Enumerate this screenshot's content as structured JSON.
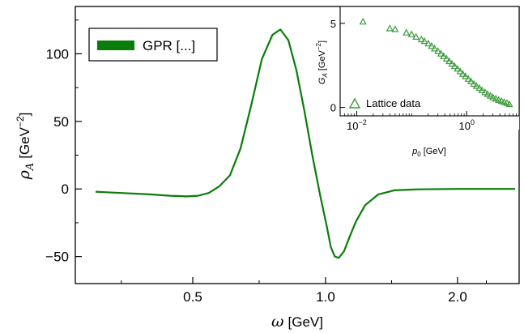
{
  "colors": {
    "series": "#0a7d0a",
    "axis": "#000000",
    "marker": "#3c9a3c"
  },
  "chart_data": [
    {
      "type": "line",
      "xlabel_symbol": "ω",
      "xlabel_unit": "[GeV]",
      "ylabel_symbol": "ρ",
      "ylabel_sub": "A",
      "ylabel_unit": "[GeV",
      "ylabel_exp": "−2",
      "ylabel_close": "]",
      "ylim": [
        -70,
        135
      ],
      "xticks": [
        {
          "value": 0.5,
          "label": "0.5"
        },
        {
          "value": 1.0,
          "label": "1.0"
        },
        {
          "value": 2.0,
          "label": "2.0"
        }
      ],
      "yticks": [
        {
          "value": 100,
          "label": "100"
        },
        {
          "value": 50,
          "label": "50"
        },
        {
          "value": 0,
          "label": "0"
        },
        {
          "value": -50,
          "label": "−50"
        }
      ],
      "legend": {
        "label": "GPR [...]",
        "position": "top-left"
      },
      "series": [
        {
          "name": "GPR [...]",
          "x": [
            0.16,
            0.25,
            0.35,
            0.42,
            0.48,
            0.52,
            0.56,
            0.6,
            0.64,
            0.68,
            0.72,
            0.76,
            0.8,
            0.83,
            0.86,
            0.89,
            0.92,
            0.95,
            0.98,
            1.01,
            1.04,
            1.07,
            1.1,
            1.14,
            1.18,
            1.23,
            1.3,
            1.4,
            1.52,
            1.7,
            2.0,
            2.5,
            3.0
          ],
          "y": [
            -2,
            -3,
            -4,
            -5,
            -5.5,
            -5,
            -3,
            2,
            10,
            30,
            62,
            96,
            114,
            118,
            110,
            88,
            58,
            25,
            -5,
            -28,
            -43,
            -50,
            -51,
            -46,
            -36,
            -24,
            -12,
            -4,
            -1,
            -0.3,
            0,
            0,
            0
          ]
        }
      ]
    },
    {
      "type": "scatter",
      "xlabel_symbol": "p",
      "xlabel_sub": "0",
      "xlabel_unit": "[GeV]",
      "ylabel_symbol": "G",
      "ylabel_sub": "A",
      "ylabel_unit": "[GeV",
      "ylabel_exp": "−2",
      "ylabel_close": "]",
      "xscale": "log",
      "xlim": [
        0.005,
        9
      ],
      "ylim": [
        -0.5,
        6
      ],
      "xticks": [
        {
          "value": 0.01,
          "base": "10",
          "exp": "−2"
        },
        {
          "value": 1,
          "base": "10",
          "exp": "0"
        }
      ],
      "yticks": [
        {
          "value": 5,
          "label": "5"
        },
        {
          "value": 0,
          "label": "0"
        }
      ],
      "legend": {
        "label": "Lattice data",
        "position": "bottom-left"
      },
      "series": [
        {
          "name": "Lattice data",
          "x": [
            0.013,
            0.04,
            0.05,
            0.08,
            0.1,
            0.12,
            0.15,
            0.17,
            0.2,
            0.23,
            0.26,
            0.3,
            0.34,
            0.38,
            0.43,
            0.48,
            0.54,
            0.6,
            0.68,
            0.76,
            0.85,
            0.95,
            1.07,
            1.2,
            1.35,
            1.5,
            1.7,
            1.9,
            2.15,
            2.4,
            2.7,
            3.0,
            3.4,
            3.8,
            4.3,
            4.8,
            5.4,
            6.0
          ],
          "y": [
            5.1,
            4.7,
            4.65,
            4.45,
            4.35,
            4.2,
            4.05,
            3.95,
            3.8,
            3.65,
            3.5,
            3.35,
            3.2,
            3.05,
            2.9,
            2.75,
            2.6,
            2.45,
            2.3,
            2.15,
            2.0,
            1.85,
            1.7,
            1.55,
            1.4,
            1.28,
            1.15,
            1.02,
            0.9,
            0.8,
            0.7,
            0.6,
            0.52,
            0.45,
            0.38,
            0.32,
            0.27,
            0.2
          ]
        }
      ]
    }
  ]
}
